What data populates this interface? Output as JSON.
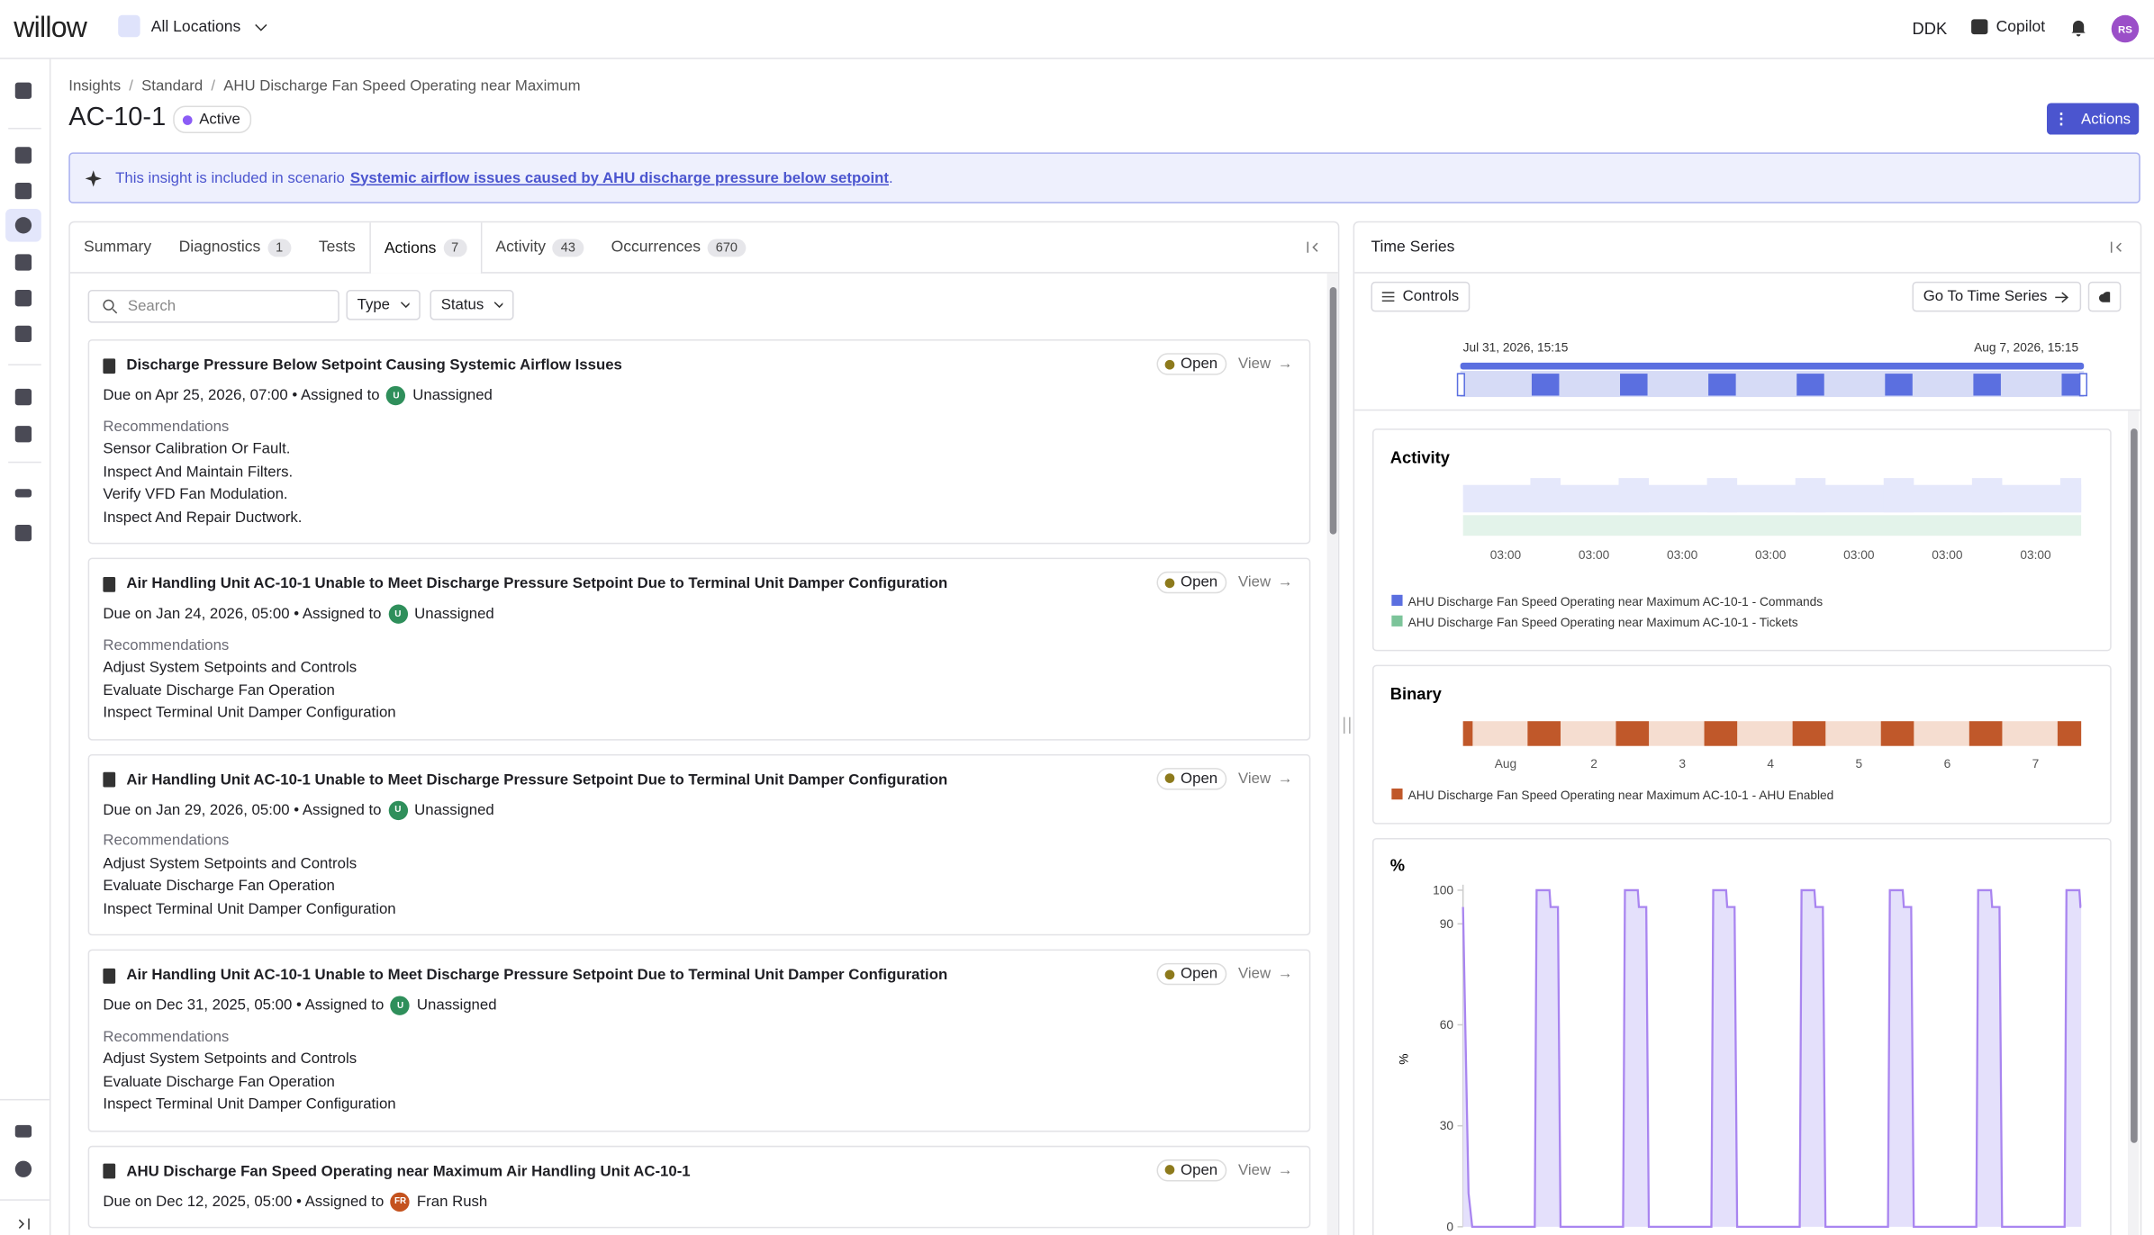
{
  "topbar": {
    "logo": "willow",
    "location": "All Locations",
    "user_code": "DDK",
    "copilot": "Copilot",
    "avatar": "RS"
  },
  "breadcrumbs": [
    "Insights",
    "Standard",
    "AHU Discharge Fan Speed Operating near Maximum"
  ],
  "title": "AC-10-1",
  "status": "Active",
  "actions_button": "Actions",
  "banner": {
    "text": "This insight is included in scenario",
    "link": "Systemic airflow issues caused by AHU discharge pressure below setpoint",
    "suffix": "."
  },
  "tabs": [
    {
      "label": "Summary"
    },
    {
      "label": "Diagnostics",
      "count": 1
    },
    {
      "label": "Tests"
    },
    {
      "label": "Actions",
      "count": 7,
      "active": true
    },
    {
      "label": "Activity",
      "count": 43
    },
    {
      "label": "Occurrences",
      "count": 670
    }
  ],
  "filters": {
    "search_placeholder": "Search",
    "type": "Type",
    "status": "Status"
  },
  "actions": [
    {
      "title": "Discharge Pressure Below Setpoint Causing Systemic Airflow Issues",
      "status": "Open",
      "view": "View",
      "meta": "Due on Apr 25, 2026, 07:00 • Assigned to",
      "assignee_initials": "U",
      "avatar_color": "#2f8f5b",
      "assignee": "Unassigned",
      "recommendations_label": "Recommendations",
      "recommendations": [
        "Sensor Calibration Or Fault.",
        "Inspect And Maintain Filters.",
        "Verify VFD Fan Modulation.",
        "Inspect And Repair Ductwork."
      ]
    },
    {
      "title": "Air Handling Unit AC-10-1 Unable to Meet Discharge Pressure Setpoint Due to Terminal Unit Damper Configuration",
      "status": "Open",
      "view": "View",
      "meta": "Due on Jan 24, 2026, 05:00 • Assigned to",
      "assignee_initials": "U",
      "avatar_color": "#2f8f5b",
      "assignee": "Unassigned",
      "recommendations_label": "Recommendations",
      "recommendations": [
        "Adjust System Setpoints and Controls",
        "Evaluate Discharge Fan Operation",
        "Inspect Terminal Unit Damper Configuration"
      ]
    },
    {
      "title": "Air Handling Unit AC-10-1 Unable to Meet Discharge Pressure Setpoint Due to Terminal Unit Damper Configuration",
      "status": "Open",
      "view": "View",
      "meta": "Due on Jan 29, 2026, 05:00 • Assigned to",
      "assignee_initials": "U",
      "avatar_color": "#2f8f5b",
      "assignee": "Unassigned",
      "recommendations_label": "Recommendations",
      "recommendations": [
        "Adjust System Setpoints and Controls",
        "Evaluate Discharge Fan Operation",
        "Inspect Terminal Unit Damper Configuration"
      ]
    },
    {
      "title": "Air Handling Unit AC-10-1 Unable to Meet Discharge Pressure Setpoint Due to Terminal Unit Damper Configuration",
      "status": "Open",
      "view": "View",
      "meta": "Due on Dec 31, 2025, 05:00 • Assigned to",
      "assignee_initials": "U",
      "avatar_color": "#2f8f5b",
      "assignee": "Unassigned",
      "recommendations_label": "Recommendations",
      "recommendations": [
        "Adjust System Setpoints and Controls",
        "Evaluate Discharge Fan Operation",
        "Inspect Terminal Unit Damper Configuration"
      ]
    },
    {
      "title": "AHU Discharge Fan Speed Operating near Maximum Air Handling Unit AC-10-1",
      "status": "Open",
      "view": "View",
      "meta": "Due on Dec 12, 2025, 05:00 • Assigned to",
      "assignee_initials": "FR",
      "avatar_color": "#c4521e",
      "assignee": "Fran Rush"
    }
  ],
  "time_series": {
    "title": "Time Series",
    "controls": "Controls",
    "goto": "Go To Time Series",
    "range_start": "Jul 31, 2026, 15:15",
    "range_end": "Aug 7, 2026, 15:15",
    "activity": {
      "title": "Activity",
      "x_labels": [
        "03:00",
        "03:00",
        "03:00",
        "03:00",
        "03:00",
        "03:00",
        "03:00"
      ],
      "legend": [
        {
          "name": "AHU Discharge Fan Speed Operating near Maximum AC-10-1 - Commands",
          "color": "#5b6fe0"
        },
        {
          "name": "AHU Discharge Fan Speed Operating near Maximum AC-10-1 - Tickets",
          "color": "#7cc49a"
        }
      ]
    },
    "binary": {
      "title": "Binary",
      "x_labels": [
        "Aug",
        "2",
        "3",
        "4",
        "5",
        "6",
        "7"
      ],
      "legend": [
        {
          "name": "AHU Discharge Fan Speed Operating near Maximum AC-10-1 - AHU Enabled",
          "color": "#c0582a"
        }
      ]
    },
    "percent": {
      "type": "line",
      "title": "%",
      "y_label": "%",
      "ylim": [
        0,
        100
      ],
      "yticks": [
        100,
        90,
        60,
        30,
        0
      ],
      "xlim": [
        0,
        168
      ],
      "color": "#a985f0",
      "x": [
        0,
        1.5,
        2.5,
        19.5,
        20,
        23.5,
        23.8,
        25.8,
        26.5,
        43.5,
        44,
        47.5,
        47.8,
        49.8,
        50.5,
        67.5,
        68,
        71.5,
        71.8,
        73.8,
        74.5,
        91.5,
        92,
        95.5,
        95.8,
        97.8,
        98.5,
        115.5,
        116,
        119.5,
        119.8,
        121.8,
        122.5,
        139.5,
        140,
        143.5,
        143.8,
        145.8,
        146.5,
        163.5,
        164,
        167.5,
        167.8,
        168
      ],
      "values": [
        95,
        10,
        0,
        0,
        100,
        100,
        95,
        95,
        0,
        0,
        100,
        100,
        95,
        95,
        0,
        0,
        100,
        100,
        95,
        95,
        0,
        0,
        100,
        100,
        95,
        95,
        0,
        0,
        100,
        100,
        95,
        95,
        0,
        0,
        100,
        100,
        95,
        95,
        0,
        0,
        100,
        100,
        95,
        95
      ]
    }
  }
}
